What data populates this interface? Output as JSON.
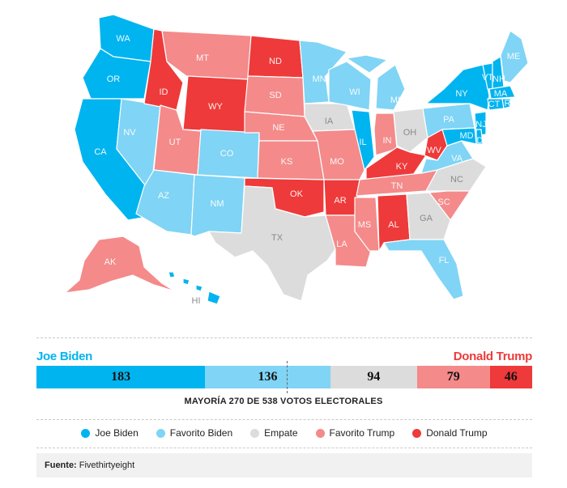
{
  "colors": {
    "biden": "#00b4f0",
    "favorito_biden": "#80d4f5",
    "empate": "#dcdcdc",
    "favorito_trump": "#f48a8a",
    "trump": "#ee3a3a"
  },
  "states": {
    "WA": "WA",
    "OR": "OR",
    "CA": "CA",
    "NV": "NV",
    "ID": "ID",
    "MT": "MT",
    "WY": "WY",
    "UT": "UT",
    "CO": "CO",
    "AZ": "AZ",
    "NM": "NM",
    "ND": "ND",
    "SD": "SD",
    "NE": "NE",
    "KS": "KS",
    "OK": "OK",
    "TX": "TX",
    "MN": "MN",
    "IA": "IA",
    "MO": "MO",
    "AR": "AR",
    "LA": "LA",
    "WI": "WI",
    "IL": "IL",
    "MS": "MS",
    "MI": "MI",
    "IN": "IN",
    "KY": "KY",
    "TN": "TN",
    "AL": "AL",
    "OH": "OH",
    "WV": "WV",
    "VA": "VA",
    "NC": "NC",
    "SC": "SC",
    "GA": "GA",
    "FL": "FL",
    "PA": "PA",
    "NY": "NY",
    "VT": "VT",
    "NH": "NH",
    "ME": "ME",
    "MA": "MA",
    "CT": "CT",
    "RI": "RI",
    "NJ": "NJ",
    "MD": "MD",
    "DE": "DE",
    "AK": "AK",
    "HI": "HI"
  },
  "summary": {
    "biden_label": "Joe Biden",
    "trump_label": "Donald Trump",
    "segments": [
      {
        "category": "biden",
        "value": 183,
        "label": "183"
      },
      {
        "category": "favorito_biden",
        "value": 136,
        "label": "136"
      },
      {
        "category": "empate",
        "value": 94,
        "label": "94"
      },
      {
        "category": "favorito_trump",
        "value": 79,
        "label": "79"
      },
      {
        "category": "trump",
        "value": 46,
        "label": "46"
      }
    ],
    "total": 538,
    "majority_text": "MAYORÍA 270 DE 538 VOTOS ELECTORALES"
  },
  "legend": {
    "biden": "Joe Biden",
    "favorito_biden": "Favorito Biden",
    "empate": "Empate",
    "favorito_trump": "Favorito Trump",
    "trump": "Donald Trump"
  },
  "source": {
    "label": "Fuente:",
    "value": "Fivethirtyeight"
  }
}
